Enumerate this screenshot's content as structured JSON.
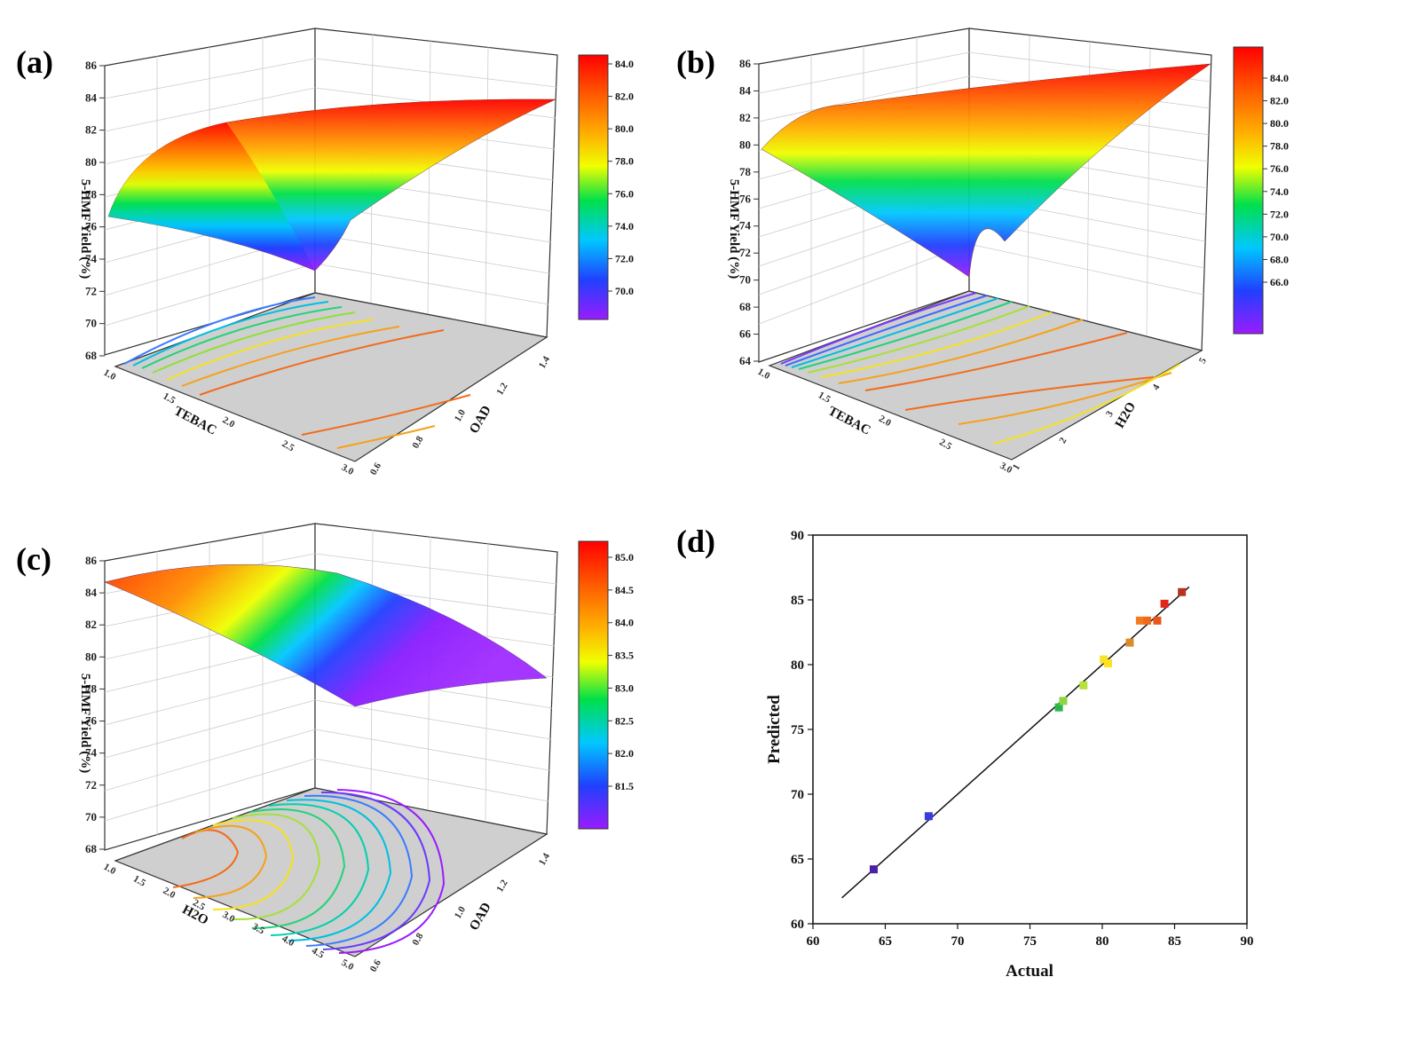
{
  "chart_data": [
    {
      "panel": "(a)",
      "type": "surface3d",
      "zlabel": "5-HMF Yield (%)",
      "xlabel": "TEBAC",
      "ylabel": "OAD",
      "zticks": [
        "68",
        "70",
        "72",
        "74",
        "76",
        "78",
        "80",
        "82",
        "84",
        "86"
      ],
      "xticks": [
        "1.0",
        "1.5",
        "2.0",
        "2.5",
        "3.0"
      ],
      "yticks": [
        "0.6",
        "0.8",
        "1.0",
        "1.2",
        "1.4"
      ],
      "colorbar_ticks": [
        "84.0",
        "82.0",
        "80.0",
        "78.0",
        "76.0",
        "74.0",
        "72.0",
        "70.0"
      ],
      "zrange": [
        68,
        86
      ]
    },
    {
      "panel": "(b)",
      "type": "surface3d",
      "zlabel": "5-HMF Yield (%)",
      "xlabel": "TEBAC",
      "ylabel": "H2O",
      "zticks": [
        "64",
        "66",
        "68",
        "70",
        "72",
        "74",
        "76",
        "78",
        "80",
        "82",
        "84",
        "86"
      ],
      "xticks": [
        "1.0",
        "1.5",
        "2.0",
        "2.5",
        "3.0"
      ],
      "yticks": [
        "1",
        "2",
        "3",
        "4",
        "5"
      ],
      "colorbar_ticks": [
        "84.0",
        "82.0",
        "80.0",
        "78.0",
        "76.0",
        "74.0",
        "72.0",
        "70.0",
        "68.0",
        "66.0"
      ],
      "zrange": [
        64,
        86
      ]
    },
    {
      "panel": "(c)",
      "type": "surface3d",
      "zlabel": "5-HMF Yield (%)",
      "xlabel": "H2O",
      "ylabel": "OAD",
      "zticks": [
        "68",
        "70",
        "72",
        "74",
        "76",
        "78",
        "80",
        "82",
        "84",
        "86"
      ],
      "xticks": [
        "1.0",
        "1.5",
        "2.0",
        "2.5",
        "3.0",
        "3.5",
        "4.0",
        "4.5",
        "5.0"
      ],
      "yticks": [
        "0.6",
        "0.8",
        "1.0",
        "1.2",
        "1.4"
      ],
      "colorbar_ticks": [
        "85.0",
        "84.5",
        "84.0",
        "83.5",
        "83.0",
        "82.5",
        "82.0",
        "81.5"
      ],
      "zrange": [
        68,
        86
      ]
    },
    {
      "panel": "(d)",
      "type": "scatter",
      "xlabel": "Actual",
      "ylabel": "Predicted",
      "xlim": [
        60,
        90
      ],
      "ylim": [
        60,
        90
      ],
      "xticks": [
        "60",
        "65",
        "70",
        "75",
        "80",
        "85",
        "90"
      ],
      "yticks": [
        "60",
        "65",
        "70",
        "75",
        "80",
        "85",
        "90"
      ],
      "fit_line": [
        [
          62,
          62
        ],
        [
          86,
          86
        ]
      ],
      "points": [
        {
          "x": 64.2,
          "y": 64.2,
          "color": "#4b1fa8"
        },
        {
          "x": 68.0,
          "y": 68.3,
          "color": "#3a3ae0"
        },
        {
          "x": 77.0,
          "y": 76.7,
          "color": "#2bb54a"
        },
        {
          "x": 77.3,
          "y": 77.2,
          "color": "#8ed641"
        },
        {
          "x": 78.7,
          "y": 78.4,
          "color": "#b6e23a"
        },
        {
          "x": 80.1,
          "y": 80.4,
          "color": "#f5e22a"
        },
        {
          "x": 80.4,
          "y": 80.1,
          "color": "#ffe11e"
        },
        {
          "x": 81.9,
          "y": 81.7,
          "color": "#d98c2a"
        },
        {
          "x": 82.6,
          "y": 83.4,
          "color": "#f47a1f"
        },
        {
          "x": 83.1,
          "y": 83.4,
          "color": "#f26a19"
        },
        {
          "x": 83.8,
          "y": 83.4,
          "color": "#e9551a"
        },
        {
          "x": 84.3,
          "y": 84.7,
          "color": "#e0281b"
        },
        {
          "x": 85.5,
          "y": 85.6,
          "color": "#b5341f"
        }
      ]
    }
  ]
}
